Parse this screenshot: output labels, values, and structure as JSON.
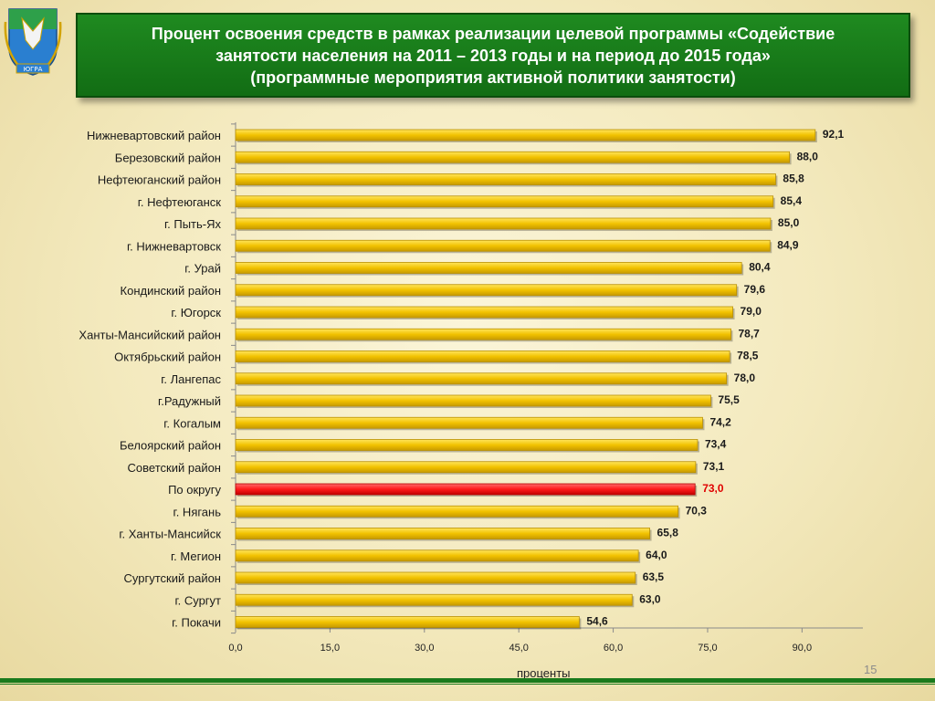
{
  "header": {
    "title_lines": [
      "Процент освоения средств в рамках реализации целевой программы «Содействие",
      "занятости населения на 2011 – 2013 годы и на период до 2015 года»",
      "(программные мероприятия активной политики занятости)"
    ]
  },
  "emblem": {
    "name": "coat-of-arms-icon",
    "caption": "ЮГРА"
  },
  "colors": {
    "bar": "#f2c200",
    "bar_dark": "#b98f00",
    "highlight": "#ff1a1a",
    "highlight_dark": "#b30000",
    "highlight_label": "#e00000"
  },
  "chart_data": {
    "type": "bar",
    "orientation": "horizontal",
    "title": "",
    "xlabel": "проценты",
    "xlim": [
      0,
      100
    ],
    "x_ticks": [
      "0,0",
      "15,0",
      "30,0",
      "45,0",
      "60,0",
      "75,0",
      "90,0"
    ],
    "x_tick_values": [
      0,
      15,
      30,
      45,
      60,
      75,
      90
    ],
    "highlight_category": "По округу",
    "categories": [
      "Нижневартовский район",
      "Березовский район",
      "Нефтеюганский район",
      "г. Нефтеюганск",
      "г. Пыть-Ях",
      "г. Нижневартовск",
      "г. Урай",
      "Кондинский район",
      "г. Югорск",
      "Ханты-Мансийский район",
      "Октябрьский район",
      "г. Лангепас",
      "г.Радужный",
      "г. Когалым",
      "Белоярский  район",
      "Советский район",
      "По округу",
      "г. Нягань",
      "г. Ханты-Мансийск",
      "г. Мегион",
      "Сургутский район",
      "г. Сургут",
      "г. Покачи"
    ],
    "values": [
      92.1,
      88.0,
      85.8,
      85.4,
      85.0,
      84.9,
      80.4,
      79.6,
      79.0,
      78.7,
      78.5,
      78.0,
      75.5,
      74.2,
      73.4,
      73.1,
      73.0,
      70.3,
      65.8,
      64.0,
      63.5,
      63.0,
      54.6
    ],
    "value_labels": [
      "92,1",
      "88,0",
      "85,8",
      "85,4",
      "85,0",
      "84,9",
      "80,4",
      "79,6",
      "79,0",
      "78,7",
      "78,5",
      "78,0",
      "75,5",
      "74,2",
      "73,4",
      "73,1",
      "73,0",
      "70,3",
      "65,8",
      "64,0",
      "63,5",
      "63,0",
      "54,6"
    ]
  },
  "slide_number": "15"
}
